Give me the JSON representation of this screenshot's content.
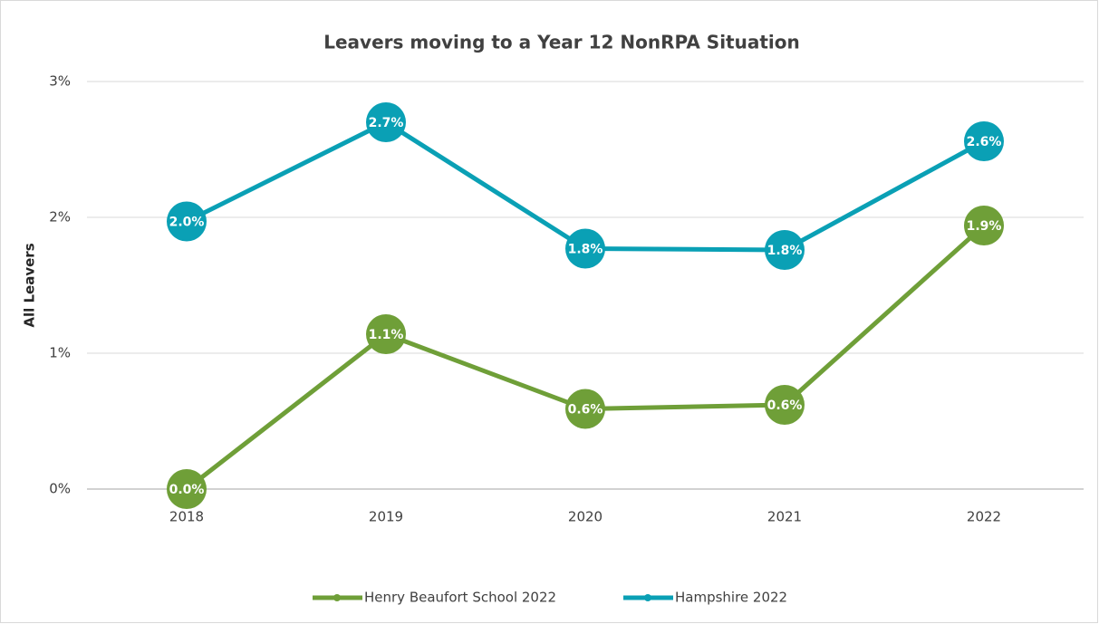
{
  "chart_data": {
    "type": "line",
    "title": "Leavers moving to a Year 12 NonRPA Situation",
    "y_label": "All Leavers",
    "categories": [
      "2018",
      "2019",
      "2020",
      "2021",
      "2022"
    ],
    "series": [
      {
        "name": "Henry Beaufort School 2022",
        "color": "#6f9f38",
        "values": [
          0.0,
          1.14,
          0.59,
          0.62,
          1.94
        ],
        "value_labels": [
          "0.0%",
          "1.1%",
          "0.6%",
          "0.6%",
          "1.9%"
        ]
      },
      {
        "name": "Hampshire 2022",
        "color": "#0aa0b5",
        "values": [
          1.97,
          2.7,
          1.77,
          1.76,
          2.56
        ],
        "value_labels": [
          "2.0%",
          "2.7%",
          "1.8%",
          "1.8%",
          "2.6%"
        ]
      }
    ],
    "ylim": [
      0,
      3
    ],
    "yticks": [
      {
        "value": 0,
        "label": "0%"
      },
      {
        "value": 1,
        "label": "1%"
      },
      {
        "value": 2,
        "label": "2%"
      },
      {
        "value": 3,
        "label": "3%"
      }
    ],
    "grid": true,
    "legend": "bottom"
  }
}
